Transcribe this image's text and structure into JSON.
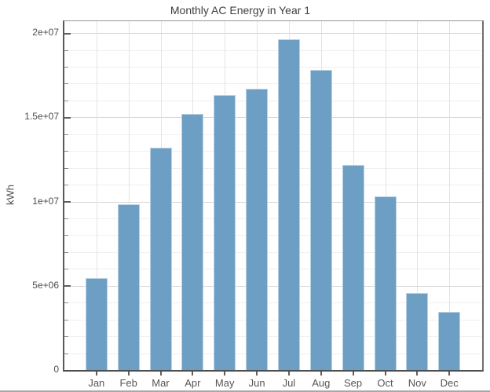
{
  "chart_data": {
    "type": "bar",
    "title": "Monthly AC Energy in Year 1",
    "xlabel": "",
    "ylabel": "kWh",
    "categories": [
      "Jan",
      "Feb",
      "Mar",
      "Apr",
      "May",
      "Jun",
      "Jul",
      "Aug",
      "Sep",
      "Oct",
      "Nov",
      "Dec"
    ],
    "values": [
      5450000,
      9850000,
      13200000,
      15200000,
      16300000,
      16700000,
      19650000,
      17800000,
      12150000,
      10300000,
      4550000,
      3450000
    ],
    "ylim": [
      0,
      20700000
    ],
    "yticks": [
      {
        "value": 0,
        "label": "0"
      },
      {
        "value": 5000000,
        "label": "5e+06"
      },
      {
        "value": 10000000,
        "label": "1e+07"
      },
      {
        "value": 15000000,
        "label": "1.5e+07"
      },
      {
        "value": 20000000,
        "label": "2e+07"
      }
    ],
    "ytick_minor_step": 1000000,
    "grid": "major and minor horizontal, vertical at bar centers",
    "legend_position": "none",
    "colors": {
      "bar_fill": "#6D9EC3",
      "bar_border": "#B9D2E3",
      "grid_major": "#D6D6D6",
      "grid_minor": "#EFEFEF",
      "axis_frame": "#5A5A5A",
      "text": "#4D4D4D",
      "background": "#FFFFFF"
    }
  }
}
